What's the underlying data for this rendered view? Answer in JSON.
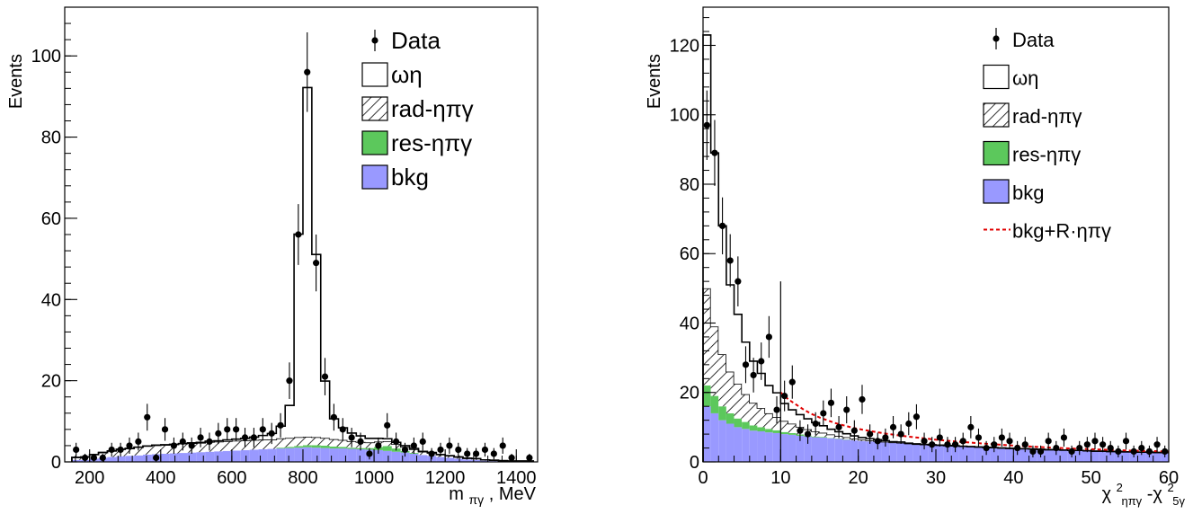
{
  "chart_data": [
    {
      "type": "histogram",
      "ylabel": "Events",
      "xlabel_main": "m",
      "xlabel_sub": "πγ",
      "xlabel_unit": ", MeV",
      "xlim": [
        130,
        1460
      ],
      "ylim": [
        0,
        112
      ],
      "xticks": [
        200,
        400,
        600,
        800,
        1000,
        1200,
        1400
      ],
      "yticks": [
        0,
        20,
        40,
        60,
        80,
        100
      ],
      "grid": false,
      "legend_placement": "top-right",
      "legend": [
        {
          "label": "Data",
          "kind": "marker"
        },
        {
          "label": "ωη",
          "kind": "box-white"
        },
        {
          "label": "rad-ηπγ",
          "kind": "box-hatch"
        },
        {
          "label": "res-ηπγ",
          "kind": "box-green"
        },
        {
          "label": "bkg",
          "kind": "box-blue"
        }
      ],
      "colors": {
        "bkg": "#9999ff",
        "res": "#5cc85c",
        "line": "#000000"
      },
      "bin_edges": [
        150,
        175,
        200,
        225,
        250,
        275,
        300,
        325,
        350,
        375,
        400,
        425,
        450,
        475,
        500,
        525,
        550,
        575,
        600,
        625,
        650,
        675,
        700,
        725,
        750,
        775,
        800,
        825,
        850,
        875,
        900,
        925,
        950,
        975,
        1000,
        1025,
        1050,
        1075,
        1100,
        1125,
        1150,
        1175,
        1200,
        1225,
        1250,
        1275,
        1300,
        1325,
        1350,
        1375,
        1400,
        1425,
        1450
      ],
      "bkg": [
        0.5,
        0.5,
        0.8,
        1.0,
        1.2,
        1.4,
        1.5,
        1.6,
        1.8,
        1.9,
        2.0,
        2.1,
        2.2,
        2.3,
        2.4,
        2.5,
        2.6,
        2.7,
        2.8,
        2.9,
        3.0,
        3.1,
        3.2,
        3.3,
        3.4,
        3.5,
        3.6,
        3.5,
        3.4,
        3.3,
        3.3,
        3.2,
        3.1,
        3.0,
        2.9,
        2.7,
        2.5,
        2.3,
        2.0,
        1.7,
        1.5,
        1.2,
        1.0,
        0.8,
        0.6,
        0.5,
        0.3,
        0.2,
        0.2,
        0.1,
        0.1,
        0.1
      ],
      "res": [
        0,
        0,
        0,
        0,
        0,
        0,
        0,
        0,
        0,
        0,
        0,
        0,
        0,
        0,
        0,
        0,
        0,
        0,
        0,
        0,
        0,
        0,
        0,
        0.2,
        0.3,
        0.4,
        0.5,
        0.6,
        0.6,
        0.5,
        0.4,
        0.3,
        0.3,
        0.4,
        0.8,
        1.2,
        0.8,
        0.4,
        0.2,
        0,
        0,
        0,
        0,
        0,
        0,
        0,
        0,
        0,
        0,
        0,
        0,
        0
      ],
      "rad": [
        0.6,
        0.7,
        1.0,
        1.3,
        1.5,
        1.7,
        1.8,
        2.0,
        2.1,
        2.2,
        2.2,
        2.2,
        2.3,
        2.3,
        2.3,
        2.4,
        2.4,
        2.4,
        2.4,
        2.4,
        2.4,
        2.4,
        2.3,
        2.3,
        2.2,
        2.2,
        2.1,
        2.0,
        1.9,
        1.8,
        1.7,
        1.6,
        1.5,
        1.4,
        1.3,
        1.2,
        1.1,
        1.0,
        0.9,
        0.8,
        0.7,
        0.6,
        0.5,
        0.4,
        0.3,
        0.3,
        0.2,
        0.2,
        0.1,
        0.1,
        0.1,
        0.1
      ],
      "omega": [
        0,
        0,
        0,
        0,
        0,
        0,
        0,
        0,
        0,
        0,
        0,
        0,
        0,
        0.1,
        0.1,
        0.2,
        0.2,
        0.3,
        0.4,
        0.5,
        0.7,
        1.0,
        1.5,
        3.0,
        8.0,
        50.0,
        86.0,
        45.0,
        14.0,
        5.0,
        3.0,
        2.0,
        1.5,
        1.0,
        0.8,
        0.6,
        0.4,
        0.3,
        0.2,
        0.1,
        0.1,
        0,
        0,
        0,
        0,
        0,
        0,
        0,
        0,
        0,
        0,
        0
      ],
      "data_x": [
        162,
        187,
        212,
        237,
        262,
        287,
        312,
        337,
        362,
        387,
        412,
        437,
        462,
        487,
        512,
        537,
        562,
        587,
        612,
        637,
        662,
        687,
        712,
        737,
        762,
        787,
        812,
        837,
        862,
        887,
        912,
        937,
        962,
        987,
        1012,
        1037,
        1062,
        1087,
        1112,
        1137,
        1162,
        1187,
        1212,
        1237,
        1262,
        1287,
        1312,
        1337,
        1362,
        1387,
        1412,
        1437
      ],
      "data_y": [
        3,
        1,
        1,
        1,
        3,
        3,
        4,
        5,
        11,
        1,
        8,
        4,
        5,
        4,
        6,
        5,
        7,
        8,
        8,
        6,
        6,
        8,
        7,
        9,
        20,
        56,
        96,
        49,
        21,
        11,
        8,
        6,
        5,
        2,
        4,
        9,
        5,
        3,
        4,
        5,
        2,
        3,
        4,
        3,
        2,
        2,
        3,
        2,
        4,
        1,
        0,
        1
      ],
      "data_err": [
        1.7,
        1.0,
        1.0,
        1.0,
        1.7,
        1.7,
        2.0,
        2.2,
        3.3,
        1.0,
        2.8,
        2.0,
        2.2,
        2.0,
        2.4,
        2.2,
        2.6,
        2.8,
        2.8,
        2.4,
        2.4,
        2.8,
        2.6,
        3.0,
        4.5,
        7.5,
        9.8,
        7.0,
        4.6,
        3.3,
        2.8,
        2.4,
        2.2,
        1.4,
        2.0,
        3.0,
        2.2,
        1.7,
        2.0,
        2.2,
        1.4,
        1.7,
        2.0,
        1.7,
        1.4,
        1.4,
        1.7,
        1.4,
        2.0,
        1.0,
        0,
        1.0
      ]
    },
    {
      "type": "histogram",
      "ylabel": "Events",
      "xlabel_parts": [
        "χ",
        "2",
        "ηπγ",
        " -χ",
        "2",
        "5γ"
      ],
      "xlim": [
        0,
        60
      ],
      "ylim": [
        0,
        131
      ],
      "xticks": [
        0,
        10,
        20,
        30,
        40,
        50,
        60
      ],
      "yticks": [
        0,
        20,
        40,
        60,
        80,
        100,
        120
      ],
      "grid": false,
      "legend_placement": "top-right",
      "legend": [
        {
          "label": "Data",
          "kind": "marker"
        },
        {
          "label": "ωη",
          "kind": "box-white"
        },
        {
          "label": "rad-ηπγ",
          "kind": "box-hatch"
        },
        {
          "label": "res-ηπγ",
          "kind": "box-green"
        },
        {
          "label": "bkg",
          "kind": "box-blue"
        },
        {
          "label": "bkg+R·ηπγ",
          "kind": "line-red-dashed"
        }
      ],
      "colors": {
        "bkg": "#9999ff",
        "res": "#5cc85c",
        "line": "#000000",
        "curve": "#e00000"
      },
      "bin_width": 1,
      "bkg": [
        16,
        14,
        12,
        11,
        10,
        9.5,
        9,
        8.8,
        8.5,
        8.3,
        8,
        7.8,
        7.5,
        7.3,
        7.1,
        7,
        6.8,
        6.6,
        6.4,
        6.2,
        6,
        5.9,
        5.8,
        5.6,
        5.5,
        5.4,
        5.3,
        5.1,
        5,
        4.9,
        4.8,
        4.7,
        4.6,
        4.5,
        4.4,
        4.3,
        4.2,
        4.1,
        4.0,
        3.9,
        3.8,
        3.8,
        3.7,
        3.6,
        3.5,
        3.5,
        3.4,
        3.3,
        3.3,
        3.2,
        3.1,
        3.1,
        3.0,
        3.0,
        2.9,
        2.9,
        2.8,
        2.8,
        2.7,
        2.7
      ],
      "res": [
        6,
        5,
        4,
        3,
        2.5,
        2,
        1.5,
        1.2,
        1,
        0.8,
        0.6,
        0.5,
        0.4,
        0.3,
        0.2,
        0.2,
        0.1,
        0.1,
        0.1,
        0,
        0,
        0,
        0,
        0,
        0,
        0,
        0,
        0,
        0,
        0,
        0,
        0,
        0,
        0,
        0,
        0,
        0,
        0,
        0,
        0,
        0,
        0,
        0,
        0,
        0,
        0,
        0,
        0,
        0,
        0,
        0,
        0,
        0,
        0,
        0,
        0,
        0,
        0,
        0,
        0
      ],
      "rad": [
        28,
        20,
        15,
        12,
        10,
        8,
        6.5,
        5.5,
        4.5,
        3.8,
        3.2,
        2.7,
        2.2,
        1.8,
        1.5,
        1.2,
        1.0,
        0.8,
        0.6,
        0.5,
        0.4,
        0.3,
        0.2,
        0.2,
        0.1,
        0.1,
        0,
        0,
        0,
        0,
        0,
        0,
        0,
        0,
        0,
        0,
        0,
        0,
        0,
        0,
        0,
        0,
        0,
        0,
        0,
        0,
        0,
        0,
        0,
        0,
        0,
        0,
        0,
        0,
        0,
        0,
        0,
        0,
        0,
        0
      ],
      "omega": [
        73,
        50,
        37,
        25,
        20,
        15,
        12,
        10,
        8,
        7,
        5,
        4,
        3.5,
        3,
        2.5,
        2,
        1.5,
        1.2,
        1,
        0.8,
        0.6,
        0.5,
        0.4,
        0.3,
        0.2,
        0.2,
        0.1,
        0.1,
        0,
        0,
        0,
        0,
        0,
        0,
        0,
        0,
        0,
        0,
        0,
        0,
        0,
        0,
        0,
        0,
        0,
        0,
        0,
        0,
        0,
        0,
        0,
        0,
        0,
        0,
        0,
        0,
        0,
        0,
        0,
        0
      ],
      "data_x": [
        0.5,
        1.5,
        2.5,
        3.5,
        4.5,
        5.5,
        6.5,
        7.5,
        8.5,
        9.5,
        10.5,
        11.5,
        12.5,
        13.5,
        14.5,
        15.5,
        16.5,
        17.5,
        18.5,
        19.5,
        20.5,
        21.5,
        22.5,
        23.5,
        24.5,
        25.5,
        26.5,
        27.5,
        28.5,
        29.5,
        30.5,
        31.5,
        32.5,
        33.5,
        34.5,
        35.5,
        36.5,
        37.5,
        38.5,
        39.5,
        40.5,
        41.5,
        42.5,
        43.5,
        44.5,
        45.5,
        46.5,
        47.5,
        48.5,
        49.5,
        50.5,
        51.5,
        52.5,
        53.5,
        54.5,
        55.5,
        56.5,
        57.5,
        58.5,
        59.5
      ],
      "data_y": [
        97,
        89,
        68,
        58,
        52,
        28,
        25,
        29,
        36,
        15,
        19,
        23,
        9,
        8,
        11,
        14,
        17,
        10,
        15,
        9,
        18,
        8,
        6,
        7,
        10,
        8,
        11,
        13,
        6,
        5,
        7,
        5,
        5,
        6,
        10,
        7,
        4,
        5,
        7,
        6,
        4,
        5,
        3,
        3,
        6,
        4,
        7,
        3,
        4,
        5,
        6,
        5,
        4,
        3,
        6,
        3,
        4,
        3,
        5,
        3
      ],
      "data_err": [
        10,
        9.5,
        8.2,
        7.6,
        7.2,
        5.3,
        5,
        5.4,
        6,
        3.9,
        4.4,
        4.8,
        3,
        2.8,
        3.3,
        3.7,
        4.1,
        3.2,
        3.9,
        3,
        4.2,
        2.8,
        2.4,
        2.6,
        3.2,
        2.8,
        3.3,
        3.6,
        2.4,
        2.2,
        2.6,
        2.2,
        2.2,
        2.4,
        3.2,
        2.6,
        2,
        2.2,
        2.6,
        2.4,
        2,
        2.2,
        1.7,
        1.7,
        2.4,
        2,
        2.6,
        1.7,
        2,
        2.2,
        2.4,
        2.2,
        2,
        1.7,
        2.4,
        1.7,
        2,
        1.7,
        2.2,
        1.7
      ],
      "marker_line_x": 10,
      "marker_line_y": 52,
      "curve_x": [
        10,
        11,
        12,
        13,
        14,
        15,
        16,
        17,
        18,
        19,
        20,
        22,
        24,
        26,
        28,
        30,
        33,
        36,
        40,
        44,
        48,
        52,
        56,
        60
      ],
      "curve_y": [
        20,
        18,
        16.5,
        15,
        13.8,
        12.8,
        12,
        11.2,
        10.6,
        10,
        9.5,
        8.7,
        8,
        7.4,
        6.9,
        6.4,
        5.8,
        5.3,
        4.7,
        4.2,
        3.8,
        3.5,
        3.2,
        3.0
      ]
    }
  ]
}
